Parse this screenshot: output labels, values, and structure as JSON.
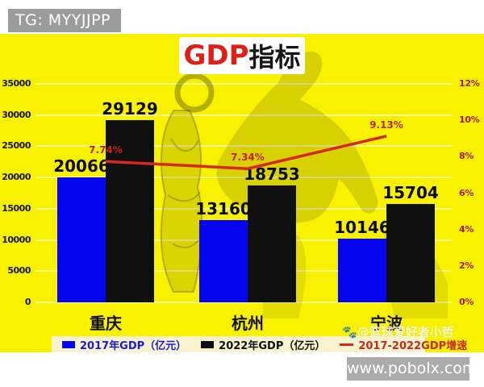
{
  "header": {
    "badge": "TG: MYYJJPP"
  },
  "title": {
    "highlight": "GDP",
    "rest": "指标"
  },
  "watermark": {
    "icon": "🐾",
    "text": "@篮球爱好者小哲"
  },
  "footer": {
    "site": "www.pobolx.com"
  },
  "colors": {
    "background": "#f8f200",
    "bar_2017": "#0505f0",
    "bar_2022": "#101010",
    "growth_line": "#d5281e",
    "right_axis_text": "#a81812",
    "legend_strip": "#f9f2cf"
  },
  "chart_data": {
    "type": "bar",
    "subtype": "grouped-bars-with-line",
    "title": "GDP指标",
    "categories": [
      "重庆",
      "杭州",
      "宁波"
    ],
    "series": [
      {
        "name": "2017年GDP（亿元）",
        "type": "bar",
        "color": "#0505f0",
        "label_color": "#1a1ad8",
        "values": [
          20066,
          13160,
          10146
        ]
      },
      {
        "name": "2022年GDP（亿元）",
        "type": "bar",
        "color": "#101010",
        "label_color": "#111111",
        "values": [
          29129,
          18753,
          15704
        ]
      },
      {
        "name": "2017-2022GDP增速",
        "type": "line",
        "color": "#d5281e",
        "label_color": "#c8281e",
        "values": [
          7.74,
          7.34,
          9.13
        ],
        "value_labels": [
          "7.74%",
          "7.34%",
          "9.13%"
        ]
      }
    ],
    "left_axis": {
      "ticks": [
        "0",
        "5000",
        "10000",
        "15000",
        "20000",
        "25000",
        "30000",
        "35000"
      ],
      "range": [
        0,
        35000
      ]
    },
    "right_axis": {
      "ticks": [
        "0%",
        "2%",
        "4%",
        "6%",
        "8%",
        "10%",
        "12%"
      ],
      "range": [
        0,
        12
      ]
    },
    "grid": true,
    "legend_position": "bottom"
  }
}
